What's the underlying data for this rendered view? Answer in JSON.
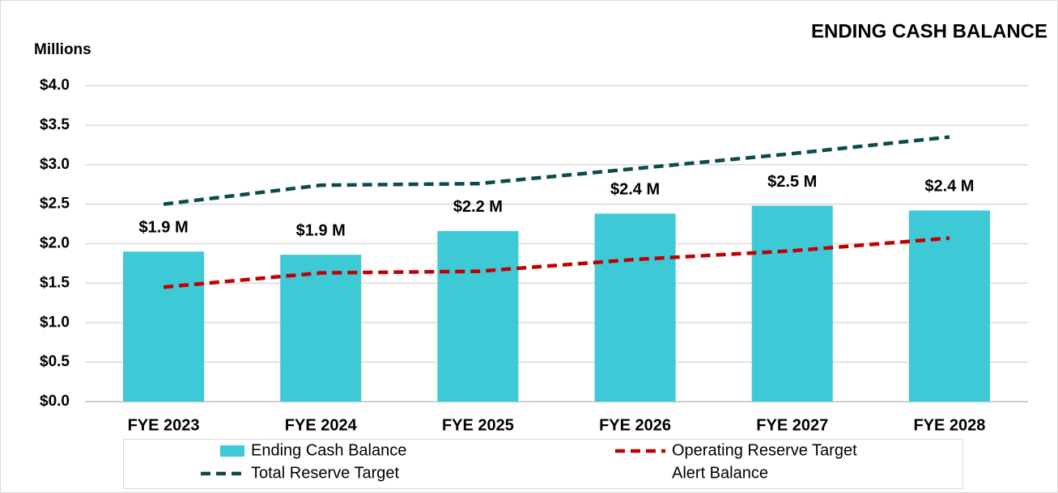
{
  "chart_data": {
    "type": "bar",
    "title": "ENDING CASH BALANCE",
    "y_label": "Millions",
    "categories": [
      "FYE 2023",
      "FYE 2024",
      "FYE 2025",
      "FYE 2026",
      "FYE 2027",
      "FYE 2028"
    ],
    "series": [
      {
        "name": "Ending Cash Balance",
        "type": "bar",
        "color": "#3ec9d6",
        "values": [
          1.9,
          1.86,
          2.16,
          2.38,
          2.48,
          2.42
        ],
        "value_labels": [
          "$1.9 M",
          "$1.9 M",
          "$2.2 M",
          "$2.4 M",
          "$2.5 M",
          "$2.4 M"
        ]
      },
      {
        "name": "Operating Reserve Target",
        "type": "line",
        "color": "#c00000",
        "values": [
          1.45,
          1.63,
          1.65,
          1.8,
          1.91,
          2.07
        ]
      },
      {
        "name": "Total Reserve Target",
        "type": "line",
        "color": "#0e4a4a",
        "values": [
          2.5,
          2.74,
          2.76,
          2.95,
          3.14,
          3.35
        ]
      },
      {
        "name": "Alert Balance",
        "type": "line",
        "values": [
          null,
          null,
          null,
          null,
          null,
          null
        ]
      }
    ],
    "ylim": [
      0,
      4
    ],
    "yticks": [
      {
        "value": 0,
        "label": "$0.0"
      },
      {
        "value": 0.5,
        "label": "$0.5"
      },
      {
        "value": 1,
        "label": "$1.0"
      },
      {
        "value": 1.5,
        "label": "$1.5"
      },
      {
        "value": 2,
        "label": "$2.0"
      },
      {
        "value": 2.5,
        "label": "$2.5"
      },
      {
        "value": 3,
        "label": "$3.0"
      },
      {
        "value": 3.5,
        "label": "$3.5"
      },
      {
        "value": 4,
        "label": "$4.0"
      }
    ],
    "grid": true
  }
}
